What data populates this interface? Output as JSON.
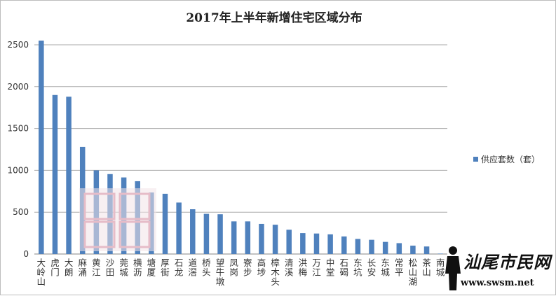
{
  "chart_data": {
    "type": "bar",
    "title": "2017年上半年新增住宅区域分布",
    "categories": [
      "大岭山",
      "虎门",
      "大朗",
      "麻涌",
      "黄江",
      "沙田",
      "莞城",
      "横沥",
      "塘厦",
      "厚街",
      "石龙",
      "道滘",
      "桥头",
      "望牛墩",
      "凤岗",
      "寮步",
      "高埗",
      "樟木头",
      "清溪",
      "洪梅",
      "万江",
      "中堂",
      "石碣",
      "东坑",
      "长安",
      "东城",
      "常平",
      "松山湖",
      "茶山",
      "南城"
    ],
    "series": [
      {
        "name": "供应套数（套）",
        "color": "#4f81bd",
        "values": [
          2550,
          1900,
          1880,
          1280,
          1000,
          955,
          915,
          870,
          735,
          720,
          615,
          535,
          480,
          475,
          390,
          390,
          360,
          350,
          290,
          250,
          245,
          235,
          210,
          180,
          170,
          145,
          130,
          100,
          90,
          5
        ]
      }
    ],
    "ylim": [
      0,
      2500
    ],
    "yticks": [
      0,
      500,
      1000,
      1500,
      2000,
      2500
    ],
    "grid": true,
    "legend": "right"
  },
  "watermark": {
    "site_name": "汕尾市民网",
    "url": "www.swsm.net"
  }
}
